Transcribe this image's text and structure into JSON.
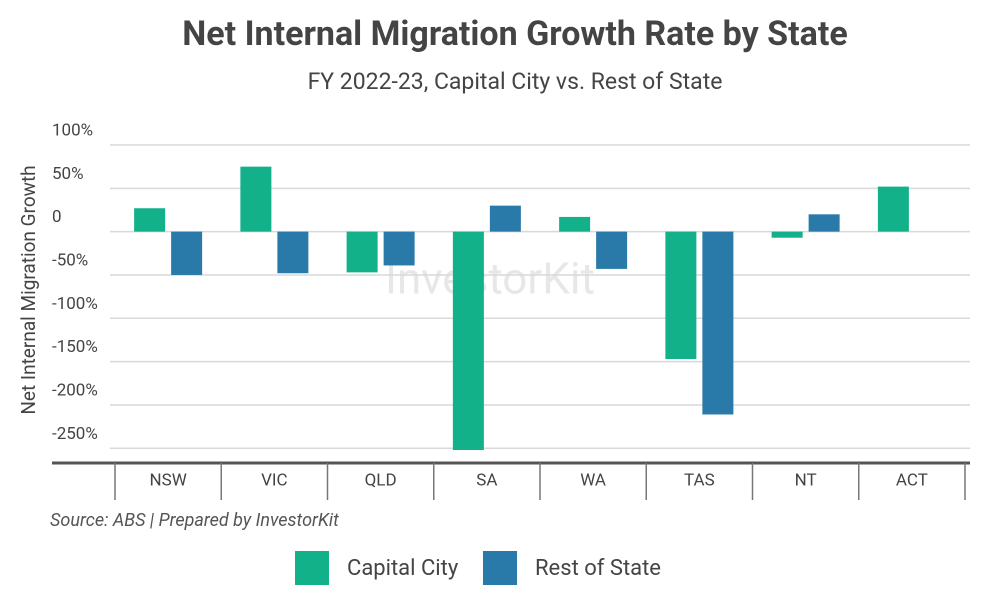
{
  "chart_data": {
    "type": "bar",
    "title": "Net Internal Migration Growth Rate by State",
    "subtitle": "FY 2022-23, Capital City vs. Rest of State",
    "y_label": "Net Internal Migration Growth",
    "source": "Source: ABS | Prepared by InvestorKit",
    "watermark": "InvestorKit",
    "categories": [
      "NSW",
      "VIC",
      "QLD",
      "SA",
      "WA",
      "TAS",
      "NT",
      "ACT"
    ],
    "series": [
      {
        "name": "Capital City",
        "color": "#13b189",
        "values": [
          27,
          75,
          -47,
          -252,
          17,
          -147,
          -7,
          52
        ]
      },
      {
        "name": "Rest of State",
        "color": "#2a7aa9",
        "values": [
          -50,
          -48,
          -39,
          30,
          -43,
          -211,
          20,
          null
        ]
      }
    ],
    "ylim": [
      -267,
      100
    ],
    "yticks": [
      {
        "value": 100,
        "label": "100%"
      },
      {
        "value": 50,
        "label": "50%"
      },
      0,
      {
        "value": -50,
        "label": "-50%"
      },
      {
        "value": -100,
        "label": "-100%"
      },
      {
        "value": -150,
        "label": "-150%"
      },
      {
        "value": -200,
        "label": "-200%"
      },
      {
        "value": -250,
        "label": "-250%"
      }
    ],
    "grid": true,
    "legend": "bottom"
  }
}
